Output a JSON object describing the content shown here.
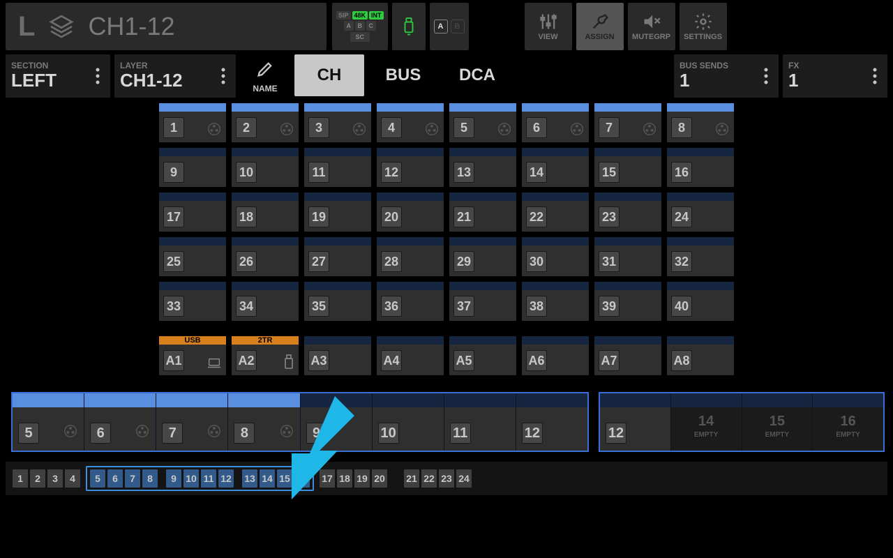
{
  "colors": {
    "bg": "#000000",
    "panel": "#2a2a2a",
    "panel_dark": "#1d1d1d",
    "cell": "#2f2f2f",
    "cell_num_bg": "#474747",
    "stripe_blue": "#5a8fe0",
    "stripe_navy": "#172640",
    "stripe_orange": "#d87f1e",
    "outline_blue": "#3a6fd8",
    "text_dim": "#7a7a7a",
    "text": "#d8d8d8",
    "green": "#2ecc40",
    "arrow": "#1fb6e8"
  },
  "header": {
    "side": "L",
    "title": "CH1-12",
    "badges": {
      "sip": "SIP",
      "rate": "48K",
      "clock": "INT",
      "a": "A",
      "b": "B",
      "c": "C",
      "sc": "SC"
    },
    "ab": {
      "a": "A",
      "b": "B"
    },
    "buttons": {
      "view": {
        "label": "VIEW",
        "active": false
      },
      "assign": {
        "label": "ASSIGN",
        "active": true
      },
      "mutegrp": {
        "label": "MUTEGRP",
        "active": false
      },
      "settings": {
        "label": "SETTINGS",
        "active": false
      }
    }
  },
  "row2": {
    "section": {
      "tag": "SECTION",
      "val": "LEFT"
    },
    "layer": {
      "tag": "LAYER",
      "val": "CH1-12"
    },
    "name_btn": "NAME",
    "seg": {
      "ch": "CH",
      "bus": "BUS",
      "dca": "DCA",
      "active": "ch"
    },
    "bus_sends": {
      "tag": "BUS SENDS",
      "val": "1"
    },
    "fx": {
      "tag": "FX",
      "val": "1"
    }
  },
  "grid": {
    "rows": [
      {
        "stripe": "blue",
        "icon": true,
        "cells": [
          "1",
          "2",
          "3",
          "4",
          "5",
          "6",
          "7",
          "8"
        ]
      },
      {
        "stripe": "dnavy",
        "icon": false,
        "cells": [
          "9",
          "10",
          "11",
          "12",
          "13",
          "14",
          "15",
          "16"
        ]
      },
      {
        "stripe": "dnavy",
        "icon": false,
        "cells": [
          "17",
          "18",
          "19",
          "20",
          "21",
          "22",
          "23",
          "24"
        ]
      },
      {
        "stripe": "dnavy",
        "icon": false,
        "cells": [
          "25",
          "26",
          "27",
          "28",
          "29",
          "30",
          "31",
          "32"
        ]
      },
      {
        "stripe": "dnavy",
        "icon": false,
        "cells": [
          "33",
          "34",
          "35",
          "36",
          "37",
          "38",
          "39",
          "40"
        ]
      }
    ],
    "aux_row": [
      {
        "num": "A1",
        "stripe": "orange",
        "label": "USB",
        "icon": "laptop"
      },
      {
        "num": "A2",
        "stripe": "orange",
        "label": "2TR",
        "icon": "usb"
      },
      {
        "num": "A3",
        "stripe": "dnavy"
      },
      {
        "num": "A4",
        "stripe": "dnavy"
      },
      {
        "num": "A5",
        "stripe": "dnavy"
      },
      {
        "num": "A6",
        "stripe": "dnavy"
      },
      {
        "num": "A7",
        "stripe": "dnavy"
      },
      {
        "num": "A8",
        "stripe": "dnavy"
      }
    ]
  },
  "surface": {
    "group1": [
      {
        "num": "5",
        "stripe": "blue",
        "icon": true
      },
      {
        "num": "6",
        "stripe": "blue",
        "icon": true
      },
      {
        "num": "7",
        "stripe": "blue",
        "icon": true
      },
      {
        "num": "8",
        "stripe": "blue",
        "icon": true
      },
      {
        "num": "9",
        "stripe": "dnavy",
        "icon": false
      },
      {
        "num": "10",
        "stripe": "dnavy",
        "icon": false
      },
      {
        "num": "11",
        "stripe": "dnavy",
        "icon": false
      },
      {
        "num": "12",
        "stripe": "dnavy",
        "icon": false
      }
    ],
    "group2": [
      {
        "num": "12",
        "stripe": "dnavy",
        "icon": false
      },
      {
        "empty": true,
        "num": "14",
        "txt": "EMPTY"
      },
      {
        "empty": true,
        "num": "15",
        "txt": "EMPTY"
      },
      {
        "empty": true,
        "num": "16",
        "txt": "EMPTY"
      }
    ]
  },
  "pager": {
    "pre": [
      "1",
      "2",
      "3",
      "4"
    ],
    "frame": [
      [
        "5",
        "6",
        "7",
        "8"
      ],
      [
        "9",
        "10",
        "11",
        "12"
      ],
      [
        "13",
        "14",
        "15",
        "16"
      ]
    ],
    "post1": [
      "17",
      "18",
      "19",
      "20"
    ],
    "post2": [
      "21",
      "22",
      "23",
      "24"
    ]
  }
}
